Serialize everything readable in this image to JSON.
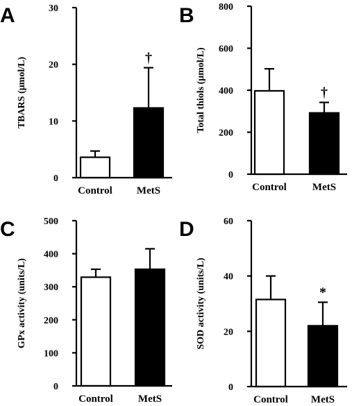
{
  "chart_data": [
    {
      "panel": "A",
      "type": "bar",
      "categories": [
        "Control",
        "MetS"
      ],
      "values": [
        3.6,
        12.3
      ],
      "errors": [
        1.1,
        7.1
      ],
      "annotations": [
        "",
        "†"
      ],
      "bar_colors": [
        "#ffffff",
        "#000000"
      ],
      "ylabel": "TBARS (μmol/L)",
      "ylim": [
        0,
        30
      ],
      "yticks": [
        0,
        10,
        20,
        30
      ]
    },
    {
      "panel": "B",
      "type": "bar",
      "categories": [
        "Control",
        "MetS"
      ],
      "values": [
        397,
        292
      ],
      "errors": [
        105,
        50
      ],
      "annotations": [
        "",
        "†"
      ],
      "bar_colors": [
        "#ffffff",
        "#000000"
      ],
      "ylabel": "Total thiols (μmol/L)",
      "ylim": [
        0,
        800
      ],
      "yticks": [
        0,
        200,
        400,
        600,
        800
      ]
    },
    {
      "panel": "C",
      "type": "bar",
      "categories": [
        "Control",
        "MetS"
      ],
      "values": [
        329,
        353
      ],
      "errors": [
        24,
        62
      ],
      "annotations": [
        "",
        ""
      ],
      "bar_colors": [
        "#ffffff",
        "#000000"
      ],
      "ylabel": "GPx activity (units/L)",
      "ylim": [
        0,
        500
      ],
      "yticks": [
        0,
        100,
        200,
        300,
        400,
        500
      ]
    },
    {
      "panel": "D",
      "type": "bar",
      "categories": [
        "Control",
        "MetS"
      ],
      "values": [
        31.5,
        22
      ],
      "errors": [
        8.5,
        8.5
      ],
      "annotations": [
        "",
        "*"
      ],
      "bar_colors": [
        "#ffffff",
        "#000000"
      ],
      "ylabel": "SOD activity (units/L)",
      "ylim": [
        0,
        60
      ],
      "yticks": [
        0,
        20,
        40,
        60
      ]
    }
  ]
}
